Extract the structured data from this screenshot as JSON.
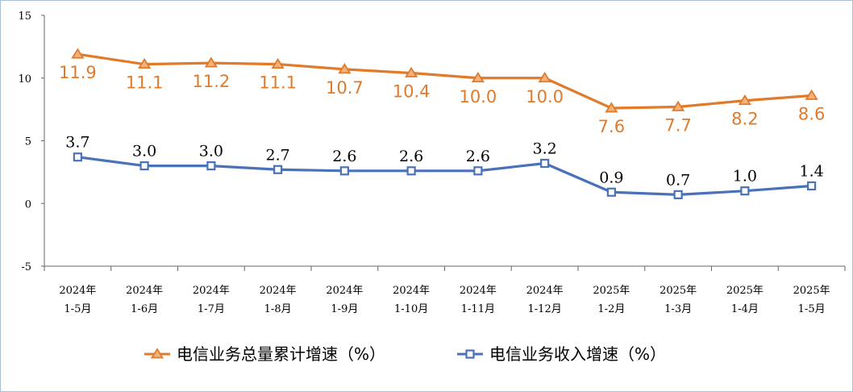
{
  "chart_data": {
    "type": "line",
    "categories": [
      [
        "2024年",
        "1-5月"
      ],
      [
        "2024年",
        "1-6月"
      ],
      [
        "2024年",
        "1-7月"
      ],
      [
        "2024年",
        "1-8月"
      ],
      [
        "2024年",
        "1-9月"
      ],
      [
        "2024年",
        "1-10月"
      ],
      [
        "2024年",
        "1-11月"
      ],
      [
        "2024年",
        "1-12月"
      ],
      [
        "2025年",
        "1-2月"
      ],
      [
        "2025年",
        "1-3月"
      ],
      [
        "2025年",
        "1-4月"
      ],
      [
        "2025年",
        "1-5月"
      ]
    ],
    "series": [
      {
        "name": "电信业务总量累计增速（%）",
        "values": [
          11.9,
          11.1,
          11.2,
          11.1,
          10.7,
          10.4,
          10.0,
          10.0,
          7.6,
          7.7,
          8.2,
          8.6
        ],
        "labels": [
          "11.9",
          "11.1",
          "11.2",
          "11.1",
          "10.7",
          "10.4",
          "10.0",
          "10.0",
          "7.6",
          "7.7",
          "8.2",
          "8.6"
        ],
        "color": "#e07b2c",
        "marker": "triangle"
      },
      {
        "name": "电信业务收入增速（%）",
        "values": [
          3.7,
          3.0,
          3.0,
          2.7,
          2.6,
          2.6,
          2.6,
          3.2,
          0.9,
          0.7,
          1.0,
          1.4
        ],
        "labels": [
          "3.7",
          "3.0",
          "3.0",
          "2.7",
          "2.6",
          "2.6",
          "2.6",
          "3.2",
          "0.9",
          "0.7",
          "1.0",
          "1.4"
        ],
        "color": "#4a72b8",
        "marker": "square"
      }
    ],
    "yticks": [
      "15",
      "10",
      "5",
      "0",
      "-5"
    ],
    "ytick_values": [
      15,
      10,
      5,
      0,
      -5
    ],
    "ylim": [
      -5,
      15
    ],
    "grid": false,
    "legend_position": "bottom"
  }
}
